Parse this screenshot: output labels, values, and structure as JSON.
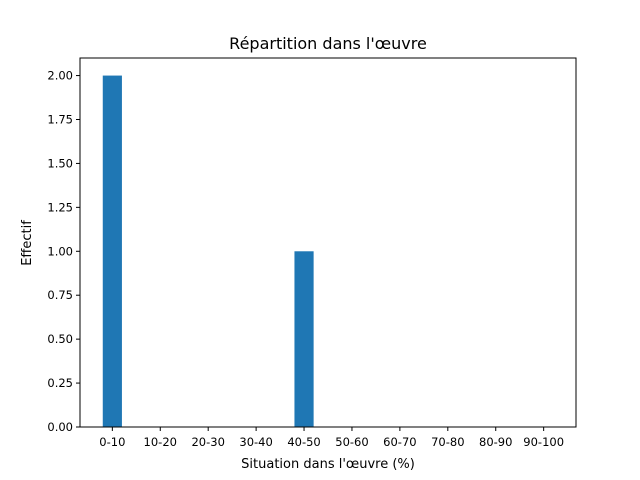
{
  "chart_data": {
    "type": "bar",
    "title": "Répartition dans l'œuvre",
    "xlabel": "Situation dans l'œuvre (%)",
    "ylabel": "Effectif",
    "categories": [
      "0-10",
      "10-20",
      "20-30",
      "30-40",
      "40-50",
      "50-60",
      "60-70",
      "70-80",
      "80-90",
      "90-100"
    ],
    "values": [
      2,
      0,
      0,
      0,
      1,
      0,
      0,
      0,
      0,
      0
    ],
    "ylim": [
      0,
      2.1
    ],
    "yticks": [
      "0.00",
      "0.25",
      "0.50",
      "0.75",
      "1.00",
      "1.25",
      "1.50",
      "1.75",
      "2.00"
    ],
    "grid": false,
    "bar_color": "#1f77b4"
  }
}
